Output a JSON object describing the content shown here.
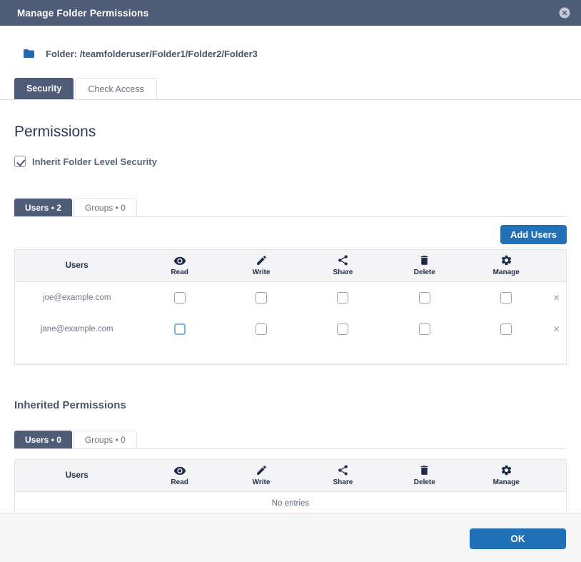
{
  "colors": {
    "header_bg": "#4e5c78",
    "accent_blue": "#2171b8",
    "icon_navy": "#1b2b49"
  },
  "dialog": {
    "title": "Manage Folder Permissions",
    "close_icon": "circle-x-icon"
  },
  "folder": {
    "label": "Folder:",
    "path": "/teamfolderuser/Folder1/Folder2/Folder3",
    "icon": "folder-icon"
  },
  "main_tabs": [
    {
      "label": "Security",
      "active": true
    },
    {
      "label": "Check Access",
      "active": false
    }
  ],
  "permissions_section": {
    "heading": "Permissions",
    "inherit_checkbox": {
      "label": "Inherit Folder Level Security",
      "checked": true
    }
  },
  "users_section": {
    "tabs": [
      {
        "label": "Users • 2",
        "active": true
      },
      {
        "label": "Groups • 0",
        "active": false
      }
    ],
    "add_button": "Add Users",
    "table": {
      "user_column_header": "Users",
      "permission_columns": [
        {
          "label": "Read",
          "icon": "eye-icon"
        },
        {
          "label": "Write",
          "icon": "pencil-icon"
        },
        {
          "label": "Share",
          "icon": "share-icon"
        },
        {
          "label": "Delete",
          "icon": "trash-icon"
        },
        {
          "label": "Manage",
          "icon": "gear-icon"
        }
      ],
      "rows": [
        {
          "user": "joe@example.com",
          "checks": [
            false,
            false,
            false,
            false,
            false
          ],
          "focused_col": null
        },
        {
          "user": "jane@example.com",
          "checks": [
            false,
            false,
            false,
            false,
            false
          ],
          "focused_col": 0
        }
      ],
      "remove_icon": "x-remove-icon"
    }
  },
  "inherited_section": {
    "heading": "Inherited Permissions",
    "tabs": [
      {
        "label": "Users • 0",
        "active": true
      },
      {
        "label": "Groups • 0",
        "active": false
      }
    ],
    "table": {
      "user_column_header": "Users",
      "permission_columns": [
        {
          "label": "Read",
          "icon": "eye-icon"
        },
        {
          "label": "Write",
          "icon": "pencil-icon"
        },
        {
          "label": "Share",
          "icon": "share-icon"
        },
        {
          "label": "Delete",
          "icon": "trash-icon"
        },
        {
          "label": "Manage",
          "icon": "gear-icon"
        }
      ],
      "empty_text": "No entries"
    }
  },
  "footer": {
    "ok_label": "OK"
  }
}
